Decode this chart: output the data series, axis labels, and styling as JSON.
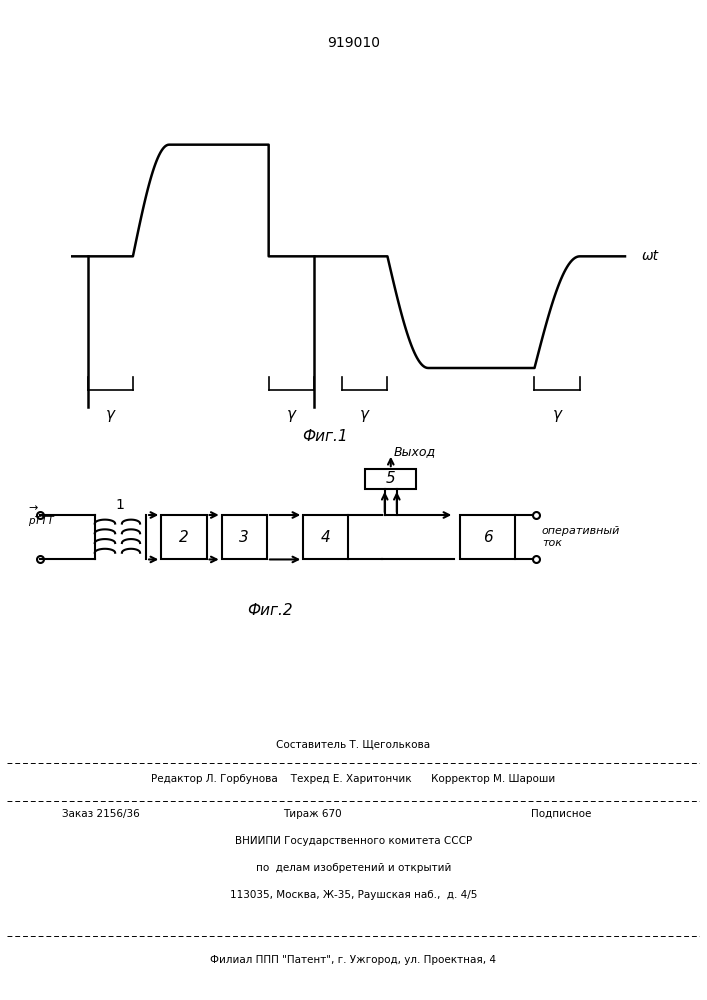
{
  "title": "919010",
  "fig1_label": "Фиг.1",
  "fig2_label": "Фиг.2",
  "wt_label": "ωt",
  "gamma_label": "γ",
  "background_color": "#ffffff",
  "line_color": "#000000",
  "box_labels_main": [
    "2",
    "3",
    "4",
    "6"
  ],
  "box_label_5": "5",
  "transformer_label": "1",
  "input_label": "рТТТ",
  "output_top": "Выход",
  "output_bottom": "оперативный\nток",
  "footer_line1": "Составитель Т. Щеголькова",
  "footer_line2": "Редактор Л. Горбунова    Техред Е. Харитончик      Корректор М. Шароши",
  "footer_line3": "Заказ 2156/36",
  "footer_line4": "Тираж 670",
  "footer_line5": "Подписное",
  "footer_line6": "ВНИИПИ Государственного комитета СССР",
  "footer_line7": "по  делам изобретений и открытий",
  "footer_line8": "113035, Москва, Ж-35, Раушская наб.,  д. 4/5",
  "footer_line9": "Филиал ППП \"Патент\", г. Ужгород, ул. Проектная, 4"
}
